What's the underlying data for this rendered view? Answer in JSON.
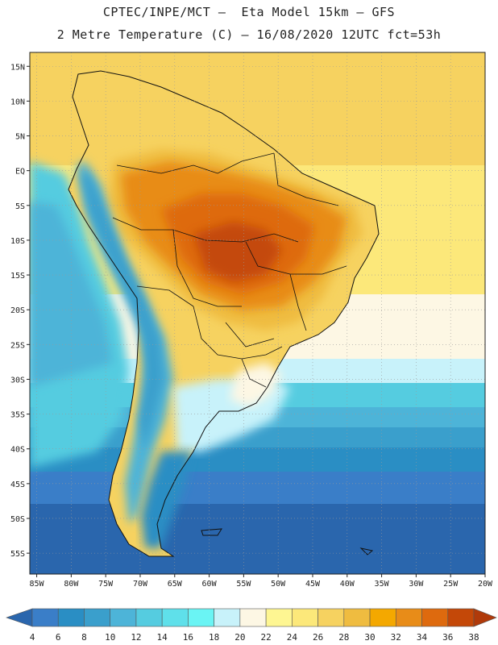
{
  "header": {
    "line1": "CPTEC/INPE/MCT –  Eta Model 15km – GFS",
    "line2": "2 Metre Temperature (C) – 16/08/2020 12UTC fct=53h"
  },
  "map": {
    "region": "South America",
    "lat_range": [
      -58,
      17
    ],
    "lon_range": [
      -86,
      -20
    ],
    "lat_labels": [
      "15N",
      "10N",
      "5N",
      "EQ",
      "5S",
      "10S",
      "15S",
      "20S",
      "25S",
      "30S",
      "35S",
      "40S",
      "45S",
      "50S",
      "55S"
    ],
    "lat_values": [
      15,
      10,
      5,
      0,
      -5,
      -10,
      -15,
      -20,
      -25,
      -30,
      -35,
      -40,
      -45,
      -50,
      -55
    ],
    "lon_labels": [
      "85W",
      "80W",
      "75W",
      "70W",
      "65W",
      "60W",
      "55W",
      "50W",
      "45W",
      "40W",
      "35W",
      "30W",
      "25W",
      "20W"
    ],
    "lon_values": [
      -85,
      -80,
      -75,
      -70,
      -65,
      -60,
      -55,
      -50,
      -45,
      -40,
      -35,
      -30,
      -25,
      -20
    ],
    "water_color": "#ffffff"
  },
  "colorbar": {
    "labels": [
      "4",
      "6",
      "8",
      "10",
      "12",
      "14",
      "16",
      "18",
      "20",
      "22",
      "24",
      "26",
      "28",
      "30",
      "32",
      "34",
      "36",
      "38"
    ],
    "colors": [
      "#3a7ec8",
      "#2a8ec4",
      "#3a9fcc",
      "#4db4d8",
      "#55cce0",
      "#5fe0ea",
      "#6af4f4",
      "#c8f2fa",
      "#fdf7e4",
      "#fef692",
      "#fce87a",
      "#f6d260",
      "#efbc40",
      "#f4a800",
      "#e88c18",
      "#de6a0e",
      "#c44808"
    ],
    "under_color": "#2a66ad",
    "over_color": "#b03a0a"
  }
}
